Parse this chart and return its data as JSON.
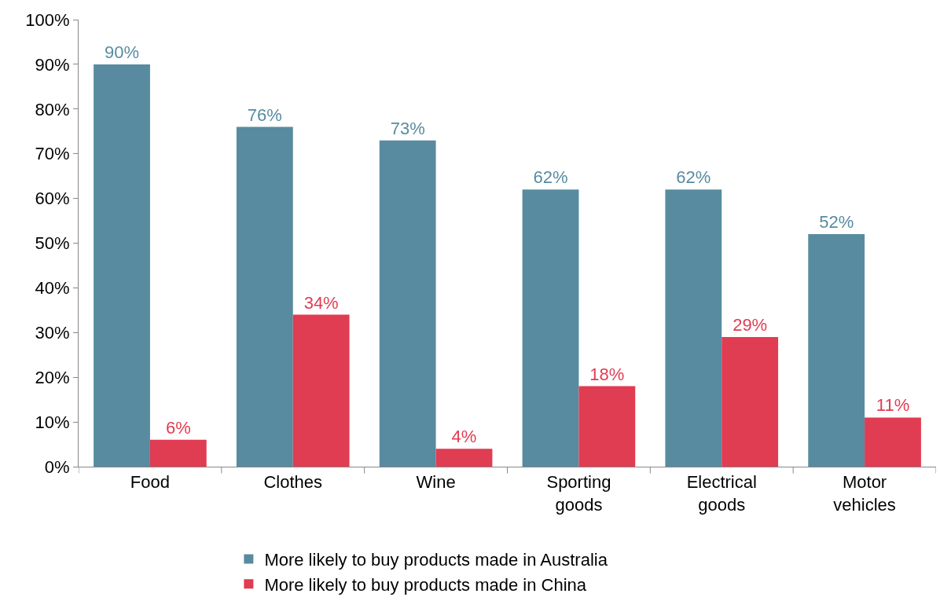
{
  "chart_data": {
    "type": "bar",
    "categories": [
      "Food",
      "Clothes",
      "Wine",
      "Sporting\ngoods",
      "Electrical\ngoods",
      "Motor\nvehicles"
    ],
    "series": [
      {
        "name": "More likely to buy products made in Australia",
        "color": "#588ba0",
        "values": [
          90,
          76,
          73,
          62,
          62,
          52
        ],
        "value_labels": [
          "90%",
          "76%",
          "73%",
          "62%",
          "62%",
          "52%"
        ]
      },
      {
        "name": "More likely to buy products made in China",
        "color": "#e03c52",
        "values": [
          6,
          34,
          4,
          18,
          29,
          11
        ],
        "value_labels": [
          "6%",
          "34%",
          "4%",
          "18%",
          "29%",
          "11%"
        ]
      }
    ],
    "ylim": [
      0,
      100
    ],
    "yticks": [
      {
        "value": 0,
        "label": "0%"
      },
      {
        "value": 10,
        "label": "10%"
      },
      {
        "value": 20,
        "label": "20%"
      },
      {
        "value": 30,
        "label": "30%"
      },
      {
        "value": 40,
        "label": "40%"
      },
      {
        "value": 50,
        "label": "50%"
      },
      {
        "value": 60,
        "label": "60%"
      },
      {
        "value": 70,
        "label": "70%"
      },
      {
        "value": 80,
        "label": "80%"
      },
      {
        "value": 90,
        "label": "90%"
      },
      {
        "value": 100,
        "label": "100%"
      }
    ],
    "grid": false,
    "legend": "bottom"
  }
}
